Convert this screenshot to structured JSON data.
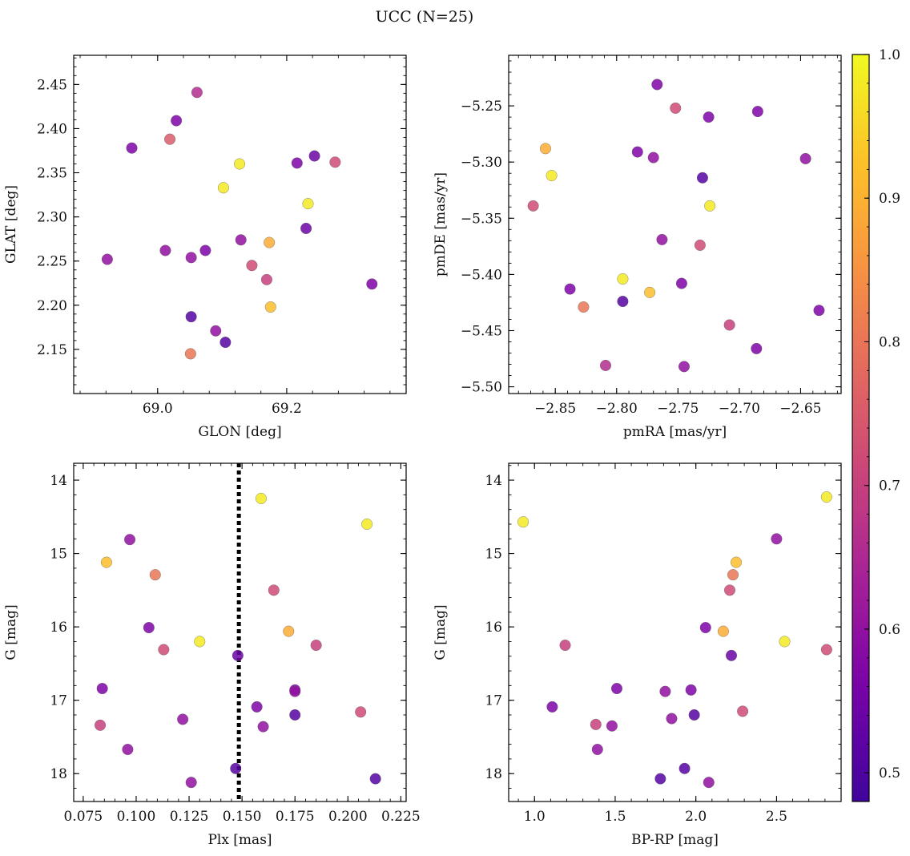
{
  "title": "UCC (N=25)",
  "colorbar": {
    "range": [
      0.48,
      1.0
    ],
    "ticks": [
      0.5,
      0.6,
      0.7,
      0.8,
      0.9,
      1.0
    ],
    "tick_labels": [
      "0.5",
      "0.6",
      "0.7",
      "0.8",
      "0.9",
      "1.0"
    ],
    "colormap": "plasma"
  },
  "chart_data": [
    {
      "type": "scatter",
      "id": "glon-glat",
      "xlabel": "GLON [deg]",
      "ylabel": "GLAT [deg]",
      "xlim": [
        68.87,
        69.385
      ],
      "ylim": [
        2.1,
        2.483
      ],
      "xticks": [
        69.0,
        69.2
      ],
      "xtick_labels": [
        "69.0",
        "69.2"
      ],
      "yticks": [
        2.15,
        2.2,
        2.25,
        2.3,
        2.35,
        2.4,
        2.45
      ],
      "ytick_labels": [
        "2.15",
        "2.20",
        "2.25",
        "2.30",
        "2.35",
        "2.40",
        "2.45"
      ],
      "x": [
        69.061,
        68.96,
        69.029,
        69.019,
        69.127,
        69.102,
        69.216,
        69.243,
        69.275,
        69.233,
        69.173,
        69.23,
        68.922,
        69.012,
        69.052,
        69.074,
        69.129,
        69.146,
        69.169,
        69.175,
        69.332,
        69.052,
        69.09,
        69.105,
        69.051
      ],
      "y": [
        2.441,
        2.378,
        2.409,
        2.388,
        2.36,
        2.333,
        2.361,
        2.369,
        2.362,
        2.315,
        2.271,
        2.287,
        2.252,
        2.262,
        2.254,
        2.262,
        2.274,
        2.245,
        2.229,
        2.198,
        2.224,
        2.187,
        2.171,
        2.158,
        2.145
      ],
      "color": [
        0.66,
        0.57,
        0.57,
        0.75,
        0.98,
        0.98,
        0.57,
        0.54,
        0.72,
        0.98,
        0.89,
        0.54,
        0.6,
        0.6,
        0.6,
        0.57,
        0.6,
        0.72,
        0.7,
        0.92,
        0.57,
        0.51,
        0.6,
        0.51,
        0.8
      ]
    },
    {
      "type": "scatter",
      "id": "pmra-pmde",
      "xlabel": "pmRA [mas/yr]",
      "ylabel": "pmDE [mas/yr]",
      "xlim": [
        -2.888,
        -2.617
      ],
      "ylim": [
        -5.506,
        -5.205
      ],
      "xticks": [
        -2.85,
        -2.8,
        -2.75,
        -2.7,
        -2.65
      ],
      "xtick_labels": [
        "−2.85",
        "−2.80",
        "−2.75",
        "−2.70",
        "−2.65"
      ],
      "yticks": [
        -5.25,
        -5.3,
        -5.35,
        -5.4,
        -5.45,
        -5.5
      ],
      "ytick_labels": [
        "−5.25",
        "−5.30",
        "−5.35",
        "−5.40",
        "−5.45",
        "−5.50"
      ],
      "x": [
        -2.767,
        -2.752,
        -2.725,
        -2.685,
        -2.858,
        -2.853,
        -2.783,
        -2.77,
        -2.73,
        -2.646,
        -2.868,
        -2.724,
        -2.763,
        -2.732,
        -2.838,
        -2.795,
        -2.773,
        -2.747,
        -2.795,
        -2.827,
        -2.708,
        -2.635,
        -2.686,
        -2.809,
        -2.745
      ],
      "y": [
        -5.231,
        -5.252,
        -5.26,
        -5.255,
        -5.288,
        -5.312,
        -5.291,
        -5.296,
        -5.314,
        -5.297,
        -5.339,
        -5.339,
        -5.369,
        -5.374,
        -5.413,
        -5.404,
        -5.416,
        -5.408,
        -5.424,
        -5.429,
        -5.445,
        -5.432,
        -5.466,
        -5.481,
        -5.482
      ],
      "color": [
        0.57,
        0.72,
        0.57,
        0.57,
        0.89,
        0.98,
        0.57,
        0.6,
        0.51,
        0.6,
        0.72,
        0.98,
        0.6,
        0.72,
        0.57,
        0.98,
        0.92,
        0.57,
        0.51,
        0.8,
        0.7,
        0.57,
        0.57,
        0.66,
        0.6
      ]
    },
    {
      "type": "scatter",
      "id": "plx-g",
      "xlabel": "Plx [mas]",
      "ylabel": "G [mag]",
      "xlim": [
        0.0705,
        0.2275
      ],
      "ylim": [
        18.38,
        13.77
      ],
      "y_inverted": true,
      "xticks": [
        0.075,
        0.1,
        0.125,
        0.15,
        0.175,
        0.2,
        0.225
      ],
      "xtick_labels": [
        "0.075",
        "0.100",
        "0.125",
        "0.150",
        "0.175",
        "0.200",
        "0.225"
      ],
      "yticks": [
        14,
        15,
        16,
        17,
        18
      ],
      "ytick_labels": [
        "14",
        "15",
        "16",
        "17",
        "18"
      ],
      "vline": 0.1485,
      "x": [
        0.159,
        0.209,
        0.097,
        0.086,
        0.109,
        0.165,
        0.106,
        0.13,
        0.172,
        0.185,
        0.113,
        0.148,
        0.084,
        0.175,
        0.157,
        0.175,
        0.206,
        0.083,
        0.122,
        0.16,
        0.096,
        0.147,
        0.126,
        0.213,
        0.175
      ],
      "y": [
        14.25,
        14.6,
        14.81,
        15.12,
        15.29,
        15.5,
        16.01,
        16.2,
        16.06,
        16.25,
        16.31,
        16.39,
        16.84,
        16.86,
        17.09,
        17.2,
        17.16,
        17.34,
        17.26,
        17.36,
        17.67,
        17.93,
        18.12,
        18.07,
        16.88
      ],
      "color": [
        0.98,
        0.98,
        0.6,
        0.92,
        0.8,
        0.72,
        0.57,
        0.98,
        0.89,
        0.7,
        0.72,
        0.54,
        0.57,
        0.57,
        0.57,
        0.51,
        0.72,
        0.7,
        0.6,
        0.6,
        0.6,
        0.51,
        0.6,
        0.51,
        0.6
      ]
    },
    {
      "type": "scatter",
      "id": "bprp-g",
      "xlabel": "BP-RP [mag]",
      "ylabel": "G [mag]",
      "xlim": [
        0.84,
        2.9
      ],
      "ylim": [
        18.38,
        13.77
      ],
      "y_inverted": true,
      "xticks": [
        1.0,
        1.5,
        2.0,
        2.5
      ],
      "xtick_labels": [
        "1.0",
        "1.5",
        "2.0",
        "2.5"
      ],
      "yticks": [
        14,
        15,
        16,
        17,
        18
      ],
      "ytick_labels": [
        "14",
        "15",
        "16",
        "17",
        "18"
      ],
      "x": [
        0.93,
        2.81,
        2.5,
        2.25,
        2.23,
        2.21,
        2.06,
        2.17,
        2.55,
        1.19,
        2.81,
        2.22,
        1.51,
        1.97,
        1.81,
        1.11,
        2.29,
        1.38,
        1.85,
        1.48,
        1.39,
        1.99,
        1.93,
        1.78,
        2.08
      ],
      "y": [
        14.57,
        14.23,
        14.8,
        15.12,
        15.29,
        15.5,
        16.01,
        16.06,
        16.2,
        16.25,
        16.31,
        16.39,
        16.84,
        16.86,
        16.88,
        17.09,
        17.15,
        17.33,
        17.25,
        17.35,
        17.67,
        17.2,
        17.93,
        18.07,
        18.12
      ],
      "color": [
        0.98,
        0.98,
        0.6,
        0.92,
        0.8,
        0.72,
        0.57,
        0.89,
        0.98,
        0.7,
        0.72,
        0.54,
        0.57,
        0.57,
        0.6,
        0.57,
        0.72,
        0.7,
        0.6,
        0.6,
        0.6,
        0.51,
        0.51,
        0.51,
        0.6
      ]
    }
  ]
}
